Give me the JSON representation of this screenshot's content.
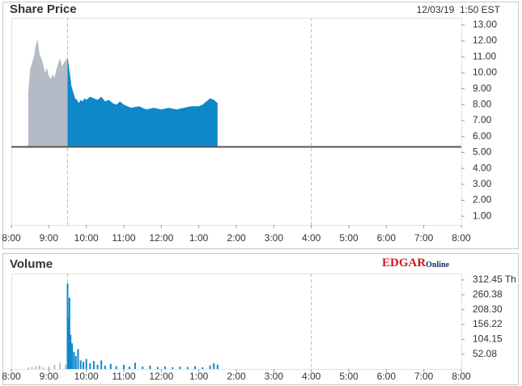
{
  "chart_data": [
    {
      "type": "area",
      "title": "Share Price",
      "timestamp": "12/03/19  1:50 EST",
      "xlim": [
        8,
        20
      ],
      "xticks": [
        {
          "value": 8,
          "label": "8:00"
        },
        {
          "value": 9,
          "label": "9:00"
        },
        {
          "value": 10,
          "label": "10:00"
        },
        {
          "value": 11,
          "label": "11:00"
        },
        {
          "value": 12,
          "label": "12:00"
        },
        {
          "value": 13,
          "label": "1:00"
        },
        {
          "value": 14,
          "label": "2:00"
        },
        {
          "value": 15,
          "label": "3:00"
        },
        {
          "value": 16,
          "label": "4:00"
        },
        {
          "value": 17,
          "label": "5:00"
        },
        {
          "value": 18,
          "label": "6:00"
        },
        {
          "value": 19,
          "label": "7:00"
        },
        {
          "value": 20,
          "label": "8:00"
        }
      ],
      "ylim": [
        0.45,
        13.45
      ],
      "yticks": [
        {
          "value": 1,
          "label": "1.00"
        },
        {
          "value": 2,
          "label": "2.00"
        },
        {
          "value": 3,
          "label": "3.00"
        },
        {
          "value": 4,
          "label": "4.00"
        },
        {
          "value": 5,
          "label": "5.00"
        },
        {
          "value": 6,
          "label": "6.00"
        },
        {
          "value": 7,
          "label": "7.00"
        },
        {
          "value": 8,
          "label": "8.00"
        },
        {
          "value": 9,
          "label": "9.00"
        },
        {
          "value": 10,
          "label": "10.00"
        },
        {
          "value": 11,
          "label": "11.00"
        },
        {
          "value": 12,
          "label": "12.00"
        },
        {
          "value": 13,
          "label": "13.00"
        }
      ],
      "baseline": 5.35,
      "vlines": [
        9.5,
        16
      ],
      "series": [
        {
          "color": "#b5bac7",
          "x": [
            8.45,
            8.5,
            8.55,
            8.6,
            8.65,
            8.7,
            8.75,
            8.8,
            8.85,
            8.9,
            8.95,
            9.0,
            9.05,
            9.1,
            9.15,
            9.2,
            9.25,
            9.3,
            9.35,
            9.4,
            9.45,
            9.5
          ],
          "values": [
            8.6,
            10.2,
            10.6,
            11.0,
            11.7,
            12.1,
            11.2,
            10.9,
            10.5,
            10.0,
            10.3,
            9.8,
            9.6,
            9.9,
            9.7,
            10.2,
            10.6,
            10.9,
            10.4,
            10.6,
            10.8,
            10.9
          ]
        },
        {
          "color": "#0e88c9",
          "x": [
            9.5,
            9.53,
            9.57,
            9.6,
            9.65,
            9.7,
            9.75,
            9.8,
            9.85,
            9.9,
            9.95,
            10.0,
            10.1,
            10.2,
            10.3,
            10.4,
            10.5,
            10.6,
            10.7,
            10.8,
            10.9,
            11.0,
            11.2,
            11.4,
            11.6,
            11.8,
            12.0,
            12.2,
            12.4,
            12.6,
            12.8,
            13.0,
            13.1,
            13.2,
            13.3,
            13.4,
            13.5
          ],
          "values": [
            11.0,
            10.5,
            9.8,
            9.2,
            8.8,
            8.4,
            8.3,
            8.1,
            8.3,
            8.2,
            8.4,
            8.3,
            8.5,
            8.4,
            8.3,
            8.5,
            8.2,
            8.3,
            8.1,
            8.0,
            8.2,
            8.0,
            7.8,
            7.9,
            7.7,
            7.8,
            7.7,
            7.8,
            7.7,
            7.8,
            7.9,
            7.9,
            8.0,
            8.2,
            8.4,
            8.3,
            8.1
          ]
        }
      ]
    },
    {
      "type": "bar",
      "title": "Volume",
      "logo": "EDGAR",
      "logo_suffix": "Online",
      "xlim": [
        8,
        20
      ],
      "xticks": [
        {
          "value": 8,
          "label": "8:00"
        },
        {
          "value": 9,
          "label": "9:00"
        },
        {
          "value": 10,
          "label": "10:00"
        },
        {
          "value": 11,
          "label": "11:00"
        },
        {
          "value": 12,
          "label": "12:00"
        },
        {
          "value": 13,
          "label": "1:00"
        },
        {
          "value": 14,
          "label": "2:00"
        },
        {
          "value": 15,
          "label": "3:00"
        },
        {
          "value": 16,
          "label": "4:00"
        },
        {
          "value": 17,
          "label": "5:00"
        },
        {
          "value": 18,
          "label": "6:00"
        },
        {
          "value": 19,
          "label": "7:00"
        },
        {
          "value": 20,
          "label": "8:00"
        }
      ],
      "ylim": [
        0,
        335
      ],
      "yticks": [
        {
          "value": 52.08,
          "label": "52.08"
        },
        {
          "value": 104.15,
          "label": "104.15"
        },
        {
          "value": 156.22,
          "label": "156.22"
        },
        {
          "value": 208.3,
          "label": "208.30"
        },
        {
          "value": 260.38,
          "label": "260.38"
        },
        {
          "value": 312.45,
          "label": "312.45 Th"
        }
      ],
      "vlines": [
        9.5,
        16
      ],
      "series": [
        {
          "color": "#b5bac7",
          "x": [
            8.45,
            8.55,
            8.65,
            8.75,
            8.85,
            9.0,
            9.15,
            9.3,
            9.45
          ],
          "values": [
            5,
            8,
            10,
            12,
            6,
            9,
            14,
            22,
            15
          ]
        },
        {
          "color": "#0e88c9",
          "x": [
            9.5,
            9.52,
            9.55,
            9.58,
            9.62,
            9.67,
            9.72,
            9.78,
            9.85,
            9.92,
            10.0,
            10.1,
            10.2,
            10.3,
            10.4,
            10.5,
            10.65,
            10.8,
            11.0,
            11.15,
            11.3,
            11.5,
            11.7,
            11.9,
            12.1,
            12.3,
            12.5,
            12.7,
            12.9,
            13.1,
            13.3,
            13.4,
            13.5
          ],
          "values": [
            300,
            180,
            250,
            120,
            90,
            60,
            45,
            70,
            30,
            25,
            35,
            20,
            28,
            15,
            30,
            12,
            18,
            10,
            15,
            9,
            22,
            8,
            12,
            7,
            9,
            6,
            8,
            7,
            10,
            6,
            12,
            20,
            15
          ]
        }
      ]
    }
  ]
}
